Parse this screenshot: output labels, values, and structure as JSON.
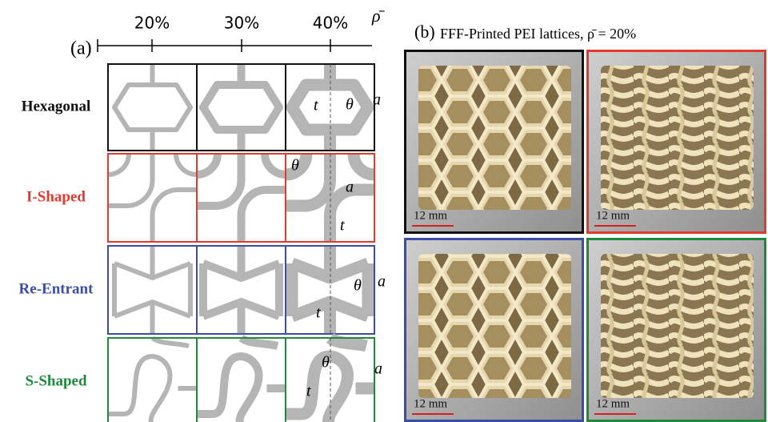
{
  "panel_a": {
    "label": "(a)",
    "density_axis": {
      "symbol": "ρ̄",
      "ticks": [
        "20%",
        "30%",
        "40%"
      ]
    },
    "rows": [
      {
        "name": "Hexagonal",
        "symbols": [
          "t",
          "θ",
          "a"
        ]
      },
      {
        "name": "I-Shaped",
        "symbols": [
          "θ",
          "a",
          "t"
        ]
      },
      {
        "name": "Re-Entrant",
        "symbols": [
          "θ",
          "a",
          "t"
        ]
      },
      {
        "name": "S-Shaped",
        "symbols": [
          "θ",
          "a",
          "t"
        ]
      }
    ]
  },
  "panel_b": {
    "label": "(b)",
    "title": "FFF-Printed PEI lattices, ρ̄ = 20%",
    "photos": [
      {
        "scale_bar": "12 mm"
      },
      {
        "scale_bar": "12 mm"
      },
      {
        "scale_bar": "12 mm"
      },
      {
        "scale_bar": "12 mm"
      }
    ]
  }
}
